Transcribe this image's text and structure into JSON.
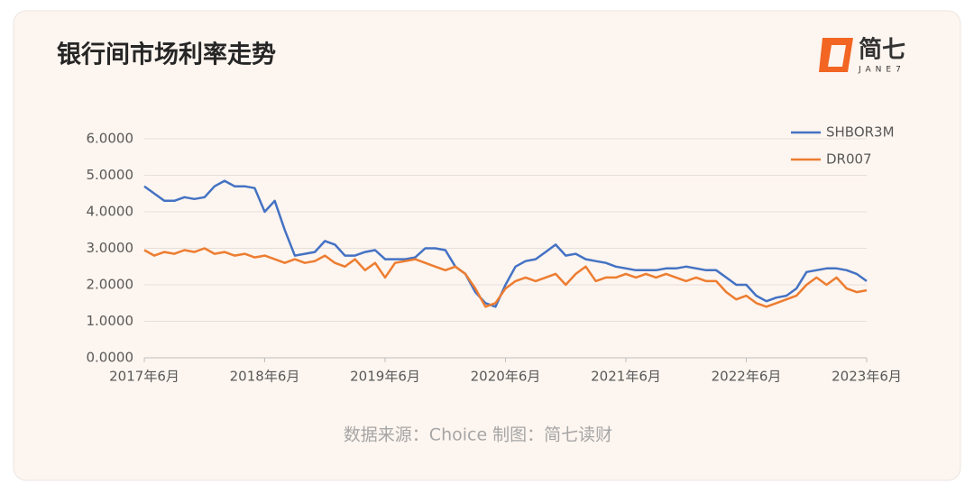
{
  "chart_data": {
    "type": "line",
    "title": "银行间市场利率走势",
    "logo_text": "简七",
    "logo_subtext": "JANE7",
    "source": "数据来源：Choice 制图：简七读财",
    "categories": [
      "2017年6月",
      null,
      null,
      null,
      null,
      null,
      null,
      null,
      null,
      null,
      null,
      null,
      "2018年6月",
      null,
      null,
      null,
      null,
      null,
      null,
      null,
      null,
      null,
      null,
      null,
      "2019年6月",
      null,
      null,
      null,
      null,
      null,
      null,
      null,
      null,
      null,
      null,
      null,
      "2020年6月",
      null,
      null,
      null,
      null,
      null,
      null,
      null,
      null,
      null,
      null,
      null,
      "2021年6月",
      null,
      null,
      null,
      null,
      null,
      null,
      null,
      null,
      null,
      null,
      null,
      "2022年6月",
      null,
      null,
      null,
      null,
      null,
      null,
      null,
      null,
      null,
      null,
      null,
      "2023年6月"
    ],
    "series": [
      {
        "name": "SHBOR3M",
        "color": "#4472c4",
        "values": [
          4.7,
          4.5,
          4.3,
          4.3,
          4.4,
          4.35,
          4.4,
          4.7,
          4.85,
          4.7,
          4.7,
          4.65,
          4.0,
          4.3,
          3.5,
          2.8,
          2.85,
          2.9,
          3.2,
          3.1,
          2.8,
          2.8,
          2.9,
          2.95,
          2.7,
          2.7,
          2.7,
          2.75,
          3.0,
          3.0,
          2.95,
          2.5,
          2.3,
          1.8,
          1.5,
          1.4,
          2.0,
          2.5,
          2.65,
          2.7,
          2.9,
          3.1,
          2.8,
          2.85,
          2.7,
          2.65,
          2.6,
          2.5,
          2.45,
          2.4,
          2.4,
          2.4,
          2.45,
          2.45,
          2.5,
          2.45,
          2.4,
          2.4,
          2.2,
          2.0,
          2.0,
          1.7,
          1.55,
          1.65,
          1.7,
          1.9,
          2.35,
          2.4,
          2.45,
          2.45,
          2.4,
          2.3,
          2.1
        ]
      },
      {
        "name": "DR007",
        "color": "#ed7d31",
        "values": [
          2.95,
          2.8,
          2.9,
          2.85,
          2.95,
          2.9,
          3.0,
          2.85,
          2.9,
          2.8,
          2.85,
          2.75,
          2.8,
          2.7,
          2.6,
          2.7,
          2.6,
          2.65,
          2.8,
          2.6,
          2.5,
          2.7,
          2.4,
          2.6,
          2.2,
          2.6,
          2.65,
          2.7,
          2.6,
          2.5,
          2.4,
          2.5,
          2.3,
          1.9,
          1.4,
          1.5,
          1.9,
          2.1,
          2.2,
          2.1,
          2.2,
          2.3,
          2.0,
          2.3,
          2.5,
          2.1,
          2.2,
          2.2,
          2.3,
          2.2,
          2.3,
          2.2,
          2.3,
          2.2,
          2.1,
          2.2,
          2.1,
          2.1,
          1.8,
          1.6,
          1.7,
          1.5,
          1.4,
          1.5,
          1.6,
          1.7,
          2.0,
          2.2,
          2.0,
          2.2,
          1.9,
          1.8,
          1.85
        ]
      }
    ],
    "ylim": [
      0,
      6
    ],
    "yticks": [
      {
        "value": 0,
        "label": "0.0000"
      },
      {
        "value": 1,
        "label": "1.0000"
      },
      {
        "value": 2,
        "label": "2.0000"
      },
      {
        "value": 3,
        "label": "3.0000"
      },
      {
        "value": 4,
        "label": "4.0000"
      },
      {
        "value": 5,
        "label": "5.0000"
      },
      {
        "value": 6,
        "label": "6.0000"
      }
    ],
    "grid": true,
    "legend": "top-right"
  }
}
